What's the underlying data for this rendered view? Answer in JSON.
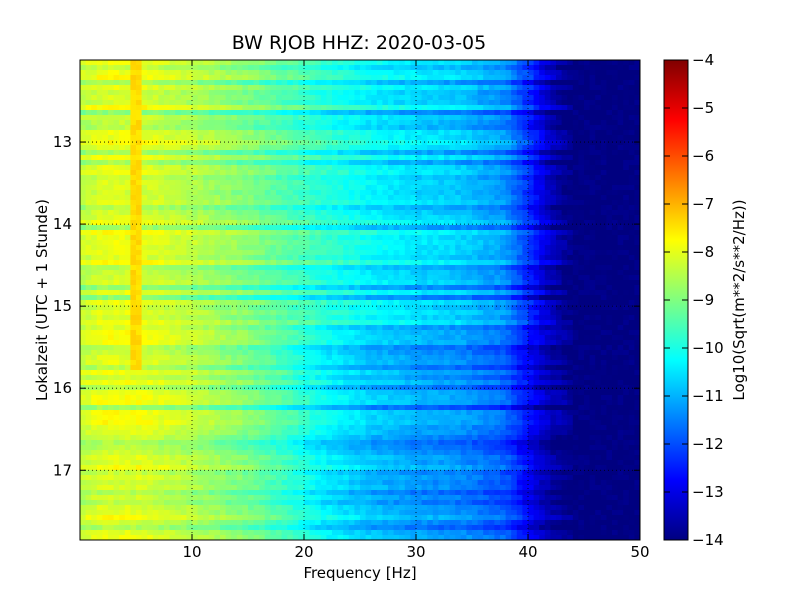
{
  "chart_data": {
    "type": "heatmap",
    "title": "BW RJOB HHZ: 2020-03-05",
    "xlabel": "Frequency [Hz]",
    "ylabel": "Lokalzeit (UTC + 1 Stunde)",
    "xlim": [
      0,
      50
    ],
    "ylim": [
      12,
      17.85
    ],
    "y_inverted": true,
    "x_ticks": [
      10,
      20,
      30,
      40,
      50
    ],
    "y_ticks": [
      13,
      14,
      15,
      16,
      17
    ],
    "grid": true,
    "colorscale": "jet",
    "colorbar": {
      "label": "Log10(Sqrt(m**2/s**2/Hz))",
      "range": [
        -14,
        -4
      ],
      "ticks": [
        -4,
        -5,
        -6,
        -7,
        -8,
        -9,
        -10,
        -11,
        -12,
        -13,
        -14
      ]
    },
    "frequency_profile": {
      "frequency_hz": [
        0,
        2,
        5,
        10,
        15,
        18,
        22,
        26,
        30,
        34,
        38,
        40,
        42,
        44,
        50
      ],
      "level_before_15_2": [
        -8.3,
        -8.0,
        -8.0,
        -8.4,
        -8.9,
        -9.3,
        -9.8,
        -10.2,
        -10.5,
        -10.7,
        -11.2,
        -12.2,
        -13.3,
        -14.0,
        -14.0
      ],
      "level_after_15_2": [
        -8.4,
        -8.1,
        -8.1,
        -8.5,
        -9.1,
        -9.6,
        -10.4,
        -10.9,
        -11.2,
        -11.4,
        -11.9,
        -12.8,
        -13.6,
        -14.0,
        -14.0
      ]
    },
    "narrowband_line": {
      "frequency_hz": 5,
      "time_range": [
        12,
        15.8
      ],
      "level": -7.4
    }
  }
}
